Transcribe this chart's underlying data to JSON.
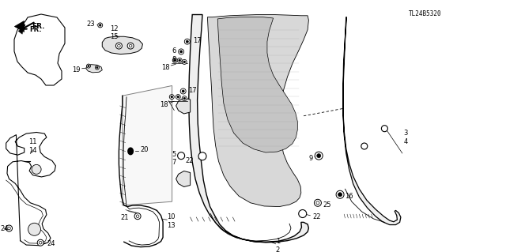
{
  "bg_color": "#ffffff",
  "part_number": "TL24B5320",
  "line_color": "#000000",
  "text_color": "#000000",
  "font_size": 6.0,
  "figsize": [
    6.4,
    3.19
  ],
  "dpi": 100
}
